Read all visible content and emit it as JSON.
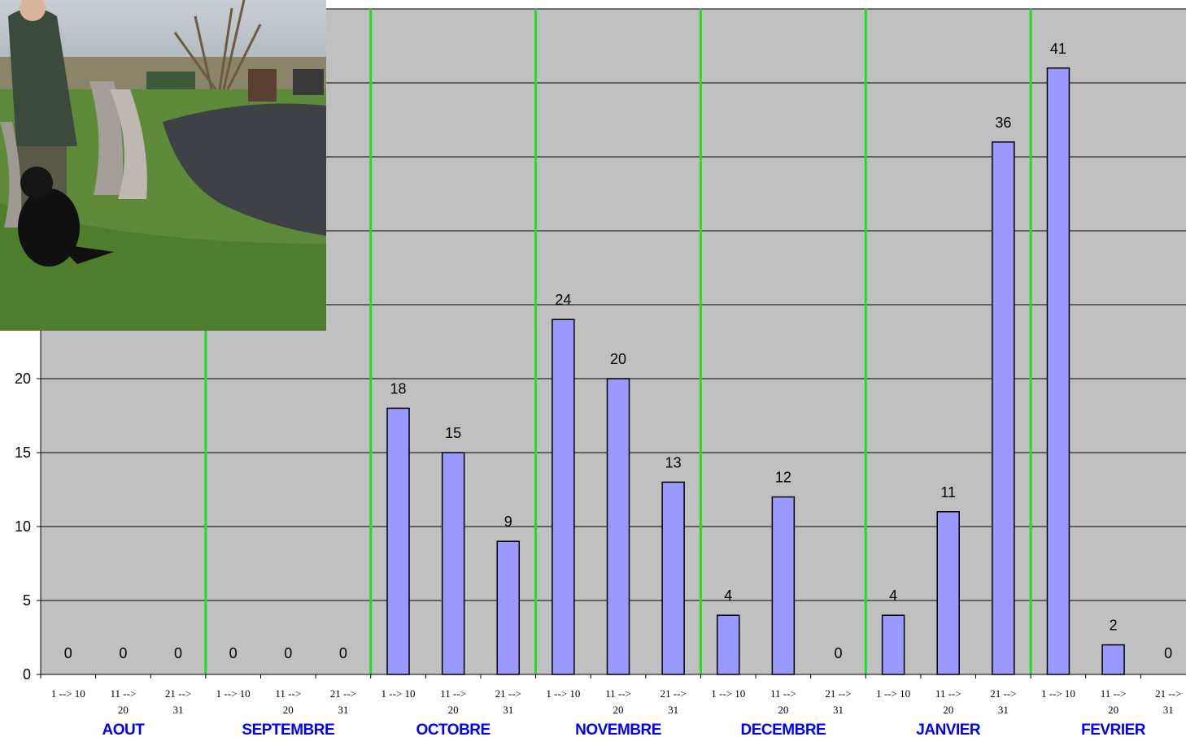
{
  "chart_data": {
    "type": "bar",
    "title": "",
    "xlabel": "",
    "ylabel": "",
    "ylim": [
      0,
      45
    ],
    "yticks": [
      0,
      5,
      10,
      15,
      20
    ],
    "grid": true,
    "months": [
      "AOUT",
      "SEPTEMBRE",
      "OCTOBRE",
      "NOVEMBRE",
      "DECEMBRE",
      "JANVIER",
      "FEVRIER"
    ],
    "period_labels": [
      [
        "1 --> 10"
      ],
      [
        "11 -->",
        "20"
      ],
      [
        "21 -->",
        "31"
      ]
    ],
    "categories": [
      "AOUT 1 --> 10",
      "AOUT 11 --> 20",
      "AOUT 21 --> 31",
      "SEPTEMBRE 1 --> 10",
      "SEPTEMBRE 11 --> 20",
      "SEPTEMBRE 21 --> 31",
      "OCTOBRE 1 --> 10",
      "OCTOBRE 11 --> 20",
      "OCTOBRE 21 --> 31",
      "NOVEMBRE 1 --> 10",
      "NOVEMBRE 11 --> 20",
      "NOVEMBRE 21 --> 31",
      "DECEMBRE 1 --> 10",
      "DECEMBRE 11 --> 20",
      "DECEMBRE 21 --> 31",
      "JANVIER 1 --> 10",
      "JANVIER 11 --> 20",
      "JANVIER 21 --> 31",
      "FEVRIER 1 --> 10",
      "FEVRIER 11 --> 20",
      "FEVRIER 21 --> 31"
    ],
    "values": [
      0,
      0,
      0,
      0,
      0,
      0,
      18,
      15,
      9,
      24,
      20,
      13,
      4,
      12,
      0,
      4,
      11,
      36,
      41,
      2,
      0
    ],
    "colors": {
      "plot_background": "#c0c0c0",
      "bar": "#9999ff",
      "bar_border": "#000000",
      "month_separator": "#22dd22",
      "month_label": "#0000ff"
    }
  }
}
